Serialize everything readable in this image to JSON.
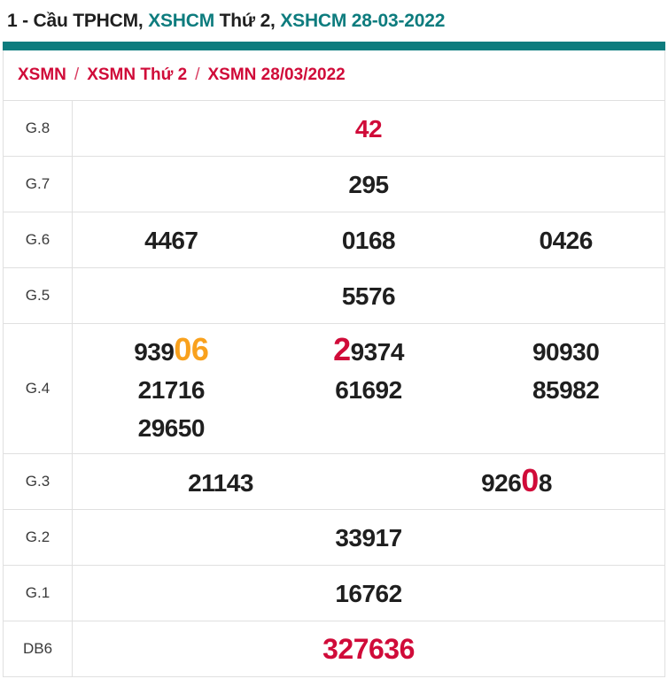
{
  "title": {
    "segments": [
      {
        "text": "1 - Cầu TPHCM, ",
        "style": "plain"
      },
      {
        "text": "XSHCM ",
        "style": "link"
      },
      {
        "text": "Thứ 2, ",
        "style": "plain"
      },
      {
        "text": "XSHCM 28-03-2022",
        "style": "link"
      }
    ]
  },
  "breadcrumb": {
    "separator": "/",
    "items": [
      {
        "label": "XSMN"
      },
      {
        "label": "XSMN Thứ 2"
      },
      {
        "label": "XSMN 28/03/2022"
      }
    ]
  },
  "results_table": {
    "rows": [
      {
        "label": "G.8",
        "cols": 1,
        "special": false,
        "lines": [
          [
            [
              {
                "text": "42",
                "color": "crimson"
              }
            ]
          ]
        ]
      },
      {
        "label": "G.7",
        "cols": 1,
        "special": false,
        "lines": [
          [
            [
              {
                "text": "295"
              }
            ]
          ]
        ]
      },
      {
        "label": "G.6",
        "cols": 3,
        "special": false,
        "lines": [
          [
            [
              {
                "text": "4467"
              }
            ],
            [
              {
                "text": "0168"
              }
            ],
            [
              {
                "text": "0426"
              }
            ]
          ]
        ]
      },
      {
        "label": "G.5",
        "cols": 1,
        "special": false,
        "lines": [
          [
            [
              {
                "text": "5576"
              }
            ]
          ]
        ]
      },
      {
        "label": "G.4",
        "cols": 3,
        "special": false,
        "lines": [
          [
            [
              {
                "text": "939"
              },
              {
                "text": "06",
                "color": "orange",
                "large": true
              }
            ],
            [
              {
                "text": "2",
                "color": "crimson",
                "large": true
              },
              {
                "text": "9374"
              }
            ],
            [
              {
                "text": "90930"
              }
            ]
          ],
          [
            [
              {
                "text": "21716"
              }
            ],
            [
              {
                "text": "61692"
              }
            ],
            [
              {
                "text": "85982"
              }
            ]
          ],
          [
            [
              {
                "text": "29650"
              }
            ]
          ]
        ]
      },
      {
        "label": "G.3",
        "cols": 2,
        "special": false,
        "lines": [
          [
            [
              {
                "text": "21143"
              }
            ],
            [
              {
                "text": "926"
              },
              {
                "text": "0",
                "color": "crimson",
                "large": true
              },
              {
                "text": "8"
              }
            ]
          ]
        ]
      },
      {
        "label": "G.2",
        "cols": 1,
        "special": false,
        "lines": [
          [
            [
              {
                "text": "33917"
              }
            ]
          ]
        ]
      },
      {
        "label": "G.1",
        "cols": 1,
        "special": false,
        "lines": [
          [
            [
              {
                "text": "16762"
              }
            ]
          ]
        ]
      },
      {
        "label": "DB6",
        "cols": 1,
        "special": true,
        "lines": [
          [
            [
              {
                "text": "327636",
                "color": "crimson"
              }
            ]
          ]
        ]
      }
    ]
  },
  "colors": {
    "teal": "#0d7c7e",
    "crimson": "#d00b39",
    "orange": "#f9a11d",
    "text_dark": "#1f1f1f",
    "border": "#e0e0e0",
    "label_gray": "#3a3a3a"
  }
}
